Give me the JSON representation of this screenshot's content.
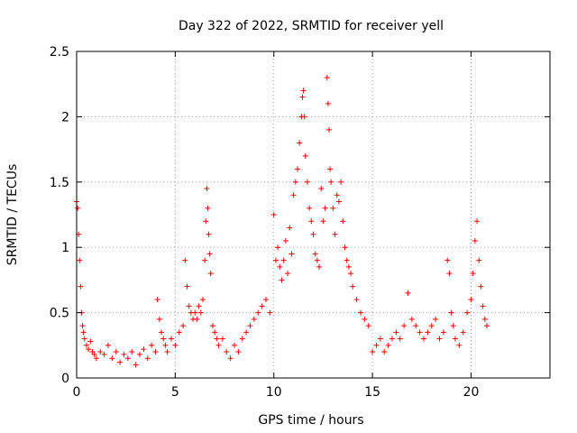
{
  "chart_data": {
    "type": "scatter",
    "title": "Day 322 of 2022, SRMTID for receiver yell",
    "xlabel": "GPS time / hours",
    "ylabel": "SRMTID / TECUs",
    "xlim": [
      0,
      24
    ],
    "ylim": [
      0,
      2.5
    ],
    "xticks": [
      0,
      5,
      10,
      15,
      20
    ],
    "yticks": [
      0,
      0.5,
      1,
      1.5,
      2,
      2.5
    ],
    "x_tick_labels": [
      "0",
      "5",
      "10",
      "15",
      "20"
    ],
    "y_tick_labels": [
      "0",
      "0.5",
      "1",
      "1.5",
      "2",
      "2.5"
    ],
    "grid": true,
    "marker": "+",
    "color": "#ff0000",
    "series": [
      {
        "name": "SRMTID",
        "x": [
          0.0,
          0.05,
          0.1,
          0.15,
          0.2,
          0.25,
          0.3,
          0.35,
          0.4,
          0.5,
          0.6,
          0.7,
          0.8,
          0.9,
          1.0,
          1.2,
          1.4,
          1.6,
          1.8,
          2.0,
          2.2,
          2.4,
          2.6,
          2.8,
          3.0,
          3.2,
          3.4,
          3.6,
          3.8,
          4.0,
          4.1,
          4.2,
          4.3,
          4.4,
          4.5,
          4.6,
          4.8,
          5.0,
          5.2,
          5.4,
          5.5,
          5.6,
          5.7,
          5.8,
          5.9,
          6.0,
          6.1,
          6.2,
          6.3,
          6.4,
          6.5,
          6.55,
          6.6,
          6.65,
          6.7,
          6.75,
          6.8,
          6.9,
          7.0,
          7.1,
          7.2,
          7.4,
          7.6,
          7.8,
          8.0,
          8.2,
          8.4,
          8.6,
          8.8,
          9.0,
          9.2,
          9.4,
          9.6,
          9.8,
          10.0,
          10.1,
          10.2,
          10.3,
          10.4,
          10.5,
          10.6,
          10.7,
          10.8,
          10.9,
          11.0,
          11.1,
          11.2,
          11.3,
          11.4,
          11.45,
          11.5,
          11.55,
          11.6,
          11.7,
          11.8,
          11.9,
          12.0,
          12.1,
          12.2,
          12.3,
          12.4,
          12.5,
          12.6,
          12.7,
          12.75,
          12.8,
          12.85,
          12.9,
          13.0,
          13.1,
          13.2,
          13.3,
          13.4,
          13.5,
          13.6,
          13.7,
          13.8,
          13.9,
          14.0,
          14.2,
          14.4,
          14.6,
          14.8,
          15.0,
          15.2,
          15.4,
          15.6,
          15.8,
          16.0,
          16.2,
          16.4,
          16.6,
          16.8,
          17.0,
          17.2,
          17.4,
          17.6,
          17.8,
          18.0,
          18.2,
          18.4,
          18.6,
          18.8,
          18.9,
          19.0,
          19.1,
          19.2,
          19.4,
          19.6,
          19.8,
          20.0,
          20.1,
          20.2,
          20.3,
          20.4,
          20.5,
          20.6,
          20.7,
          20.8
        ],
        "y": [
          1.35,
          1.3,
          1.1,
          0.9,
          0.7,
          0.5,
          0.4,
          0.35,
          0.3,
          0.25,
          0.22,
          0.28,
          0.2,
          0.18,
          0.15,
          0.2,
          0.18,
          0.25,
          0.15,
          0.2,
          0.12,
          0.18,
          0.15,
          0.2,
          0.1,
          0.18,
          0.22,
          0.15,
          0.25,
          0.2,
          0.6,
          0.45,
          0.35,
          0.3,
          0.25,
          0.2,
          0.3,
          0.25,
          0.35,
          0.4,
          0.9,
          0.7,
          0.55,
          0.5,
          0.45,
          0.5,
          0.45,
          0.55,
          0.5,
          0.6,
          0.9,
          1.2,
          1.45,
          1.3,
          1.1,
          0.95,
          0.8,
          0.4,
          0.35,
          0.3,
          0.25,
          0.3,
          0.2,
          0.15,
          0.25,
          0.2,
          0.3,
          0.35,
          0.4,
          0.45,
          0.5,
          0.55,
          0.6,
          0.5,
          1.25,
          0.9,
          1.0,
          0.85,
          0.75,
          0.9,
          1.05,
          0.8,
          1.15,
          0.95,
          1.4,
          1.5,
          1.6,
          1.8,
          2.0,
          2.15,
          2.2,
          2.0,
          1.7,
          1.5,
          1.3,
          1.2,
          1.1,
          0.95,
          0.9,
          0.85,
          1.45,
          1.2,
          1.3,
          2.3,
          2.1,
          1.9,
          1.6,
          1.5,
          1.3,
          1.1,
          1.4,
          1.35,
          1.5,
          1.2,
          1.0,
          0.9,
          0.85,
          0.8,
          0.7,
          0.6,
          0.5,
          0.45,
          0.4,
          0.2,
          0.25,
          0.3,
          0.2,
          0.25,
          0.3,
          0.35,
          0.3,
          0.4,
          0.65,
          0.45,
          0.4,
          0.35,
          0.3,
          0.35,
          0.4,
          0.45,
          0.3,
          0.35,
          0.9,
          0.8,
          0.5,
          0.4,
          0.3,
          0.25,
          0.35,
          0.5,
          0.6,
          0.8,
          1.05,
          1.2,
          0.9,
          0.7,
          0.55,
          0.45,
          0.4
        ]
      }
    ]
  }
}
